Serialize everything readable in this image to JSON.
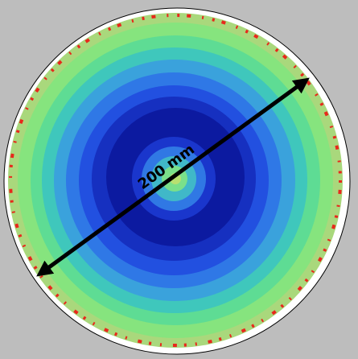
{
  "label": "200 mm"
}
